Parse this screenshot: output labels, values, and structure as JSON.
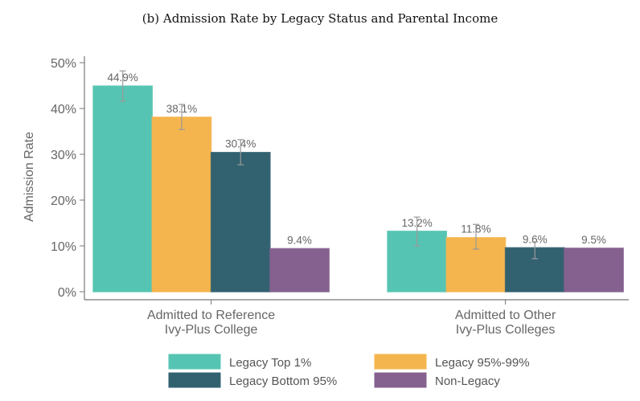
{
  "chart_data": {
    "type": "bar",
    "title": "(b) Admission Rate by Legacy Status and Parental Income",
    "xlabel": "",
    "ylabel": "Admission Rate",
    "ylim": [
      0,
      50
    ],
    "yticks": [
      "0%",
      "10%",
      "20%",
      "30%",
      "40%",
      "50%"
    ],
    "categories": [
      [
        "Admitted to Reference",
        "Ivy-Plus College"
      ],
      [
        "Admitted to Other",
        "Ivy-Plus Colleges"
      ]
    ],
    "legend_position": "bottom",
    "series": [
      {
        "name": "Legacy Top 1%",
        "color": "#56c4b3",
        "values": [
          44.9,
          13.2
        ],
        "labels": [
          "44.9%",
          "13.2%"
        ],
        "ci": [
          [
            41.6,
            48.2
          ],
          [
            10.0,
            16.3
          ]
        ]
      },
      {
        "name": "Legacy 95%-99%",
        "color": "#f5b54e",
        "values": [
          38.1,
          11.8
        ],
        "labels": [
          "38.1%",
          "11.8%"
        ],
        "ci": [
          [
            35.4,
            40.9
          ],
          [
            9.3,
            14.7
          ]
        ]
      },
      {
        "name": "Legacy Bottom 95%",
        "color": "#326170",
        "values": [
          30.4,
          9.6
        ],
        "labels": [
          "30.4%",
          "9.6%"
        ],
        "ci": [
          [
            27.7,
            33.2
          ],
          [
            7.2,
            10.9
          ]
        ]
      },
      {
        "name": "Non-Legacy",
        "color": "#84618f",
        "values": [
          9.4,
          9.5
        ],
        "labels": [
          "9.4%",
          "9.5%"
        ],
        "ci": [
          null,
          null
        ]
      }
    ]
  }
}
